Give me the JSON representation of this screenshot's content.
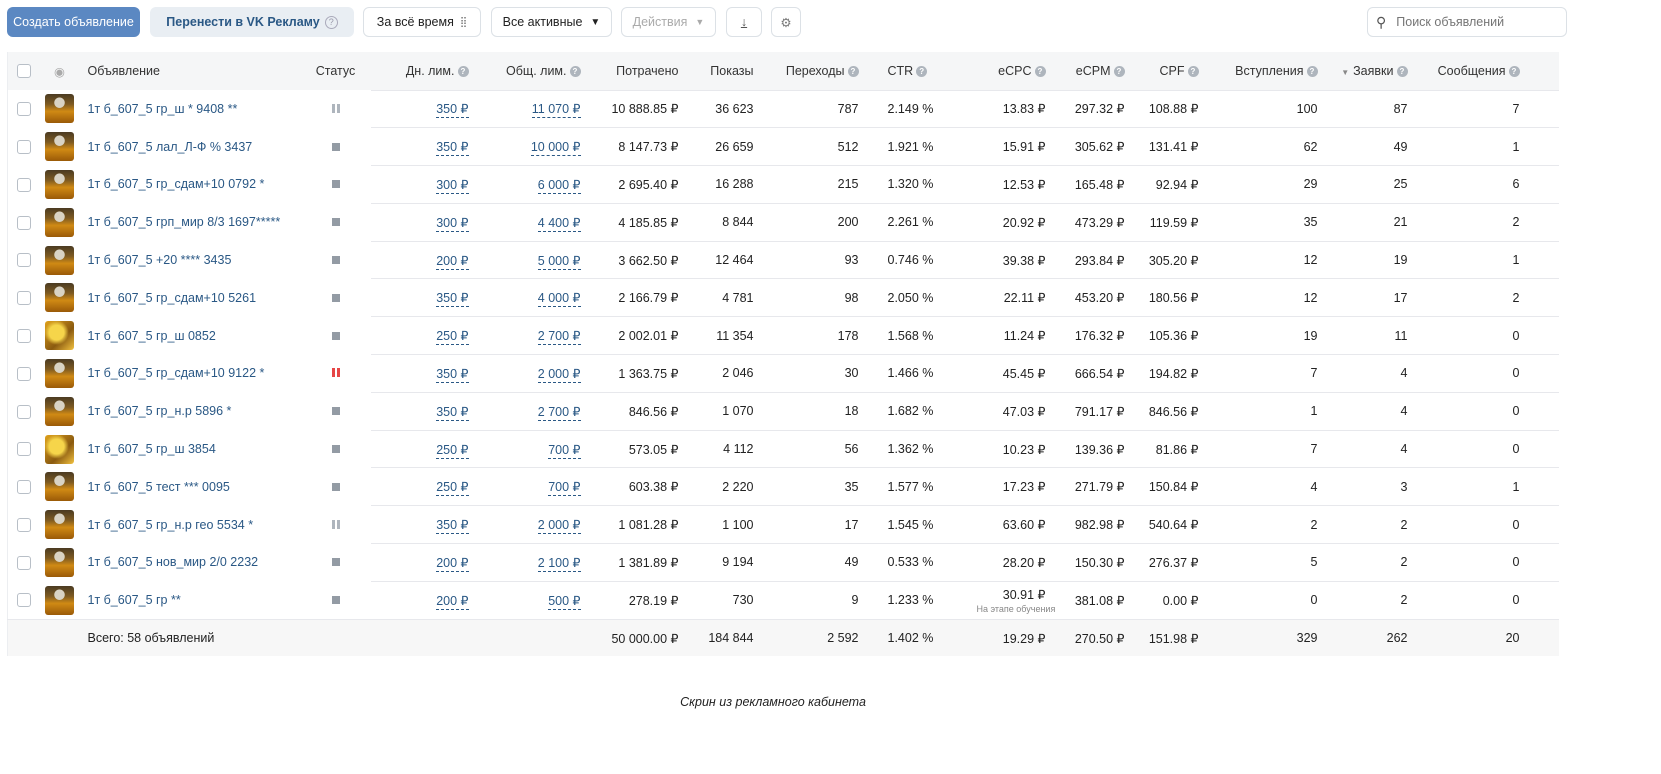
{
  "toolbar": {
    "create_label": "Создать объявление",
    "transfer_label": "Перенести в VK Рекламу",
    "period_label": "За всё время",
    "filter_label": "Все активные",
    "actions_label": "Действия",
    "search_placeholder": "Поиск объявлений"
  },
  "columns": {
    "ad": "Объявление",
    "status": "Статус",
    "daily_limit": "Дн. лим.",
    "total_limit": "Общ. лим.",
    "spent": "Потрачено",
    "impressions": "Показы",
    "clicks": "Переходы",
    "ctr": "CTR",
    "ecpc": "eCPC",
    "ecpm": "eCPM",
    "cpf": "CPF",
    "joins": "Вступления",
    "leads": "Заявки",
    "messages": "Сообщения"
  },
  "status_colors": {
    "paused": "#aeb5bd",
    "paused_alert": "#e64646",
    "stopped": "#939ba4"
  },
  "rows": [
    {
      "name": "1т б_607_5 гр_ш * 9408 **",
      "status": "paused",
      "thumb": "jar",
      "daily": "350 ₽",
      "total": "11 070 ₽",
      "spent": "10 888.85 ₽",
      "impr": "36 623",
      "clicks": "787",
      "ctr": "2.149 %",
      "ecpc": "13.83 ₽",
      "ecpm": "297.32 ₽",
      "cpf": "108.88 ₽",
      "joins": "100",
      "leads": "87",
      "msgs": "7"
    },
    {
      "name": "1т б_607_5 лал_Л-Ф % 3437",
      "status": "stopped",
      "thumb": "jar",
      "daily": "350 ₽",
      "total": "10 000 ₽",
      "spent": "8 147.73 ₽",
      "impr": "26 659",
      "clicks": "512",
      "ctr": "1.921 %",
      "ecpc": "15.91 ₽",
      "ecpm": "305.62 ₽",
      "cpf": "131.41 ₽",
      "joins": "62",
      "leads": "49",
      "msgs": "1"
    },
    {
      "name": "1т б_607_5 гр_сдам+10 0792 *",
      "status": "stopped",
      "thumb": "jar",
      "daily": "300 ₽",
      "total": "6 000 ₽",
      "spent": "2 695.40 ₽",
      "impr": "16 288",
      "clicks": "215",
      "ctr": "1.320 %",
      "ecpc": "12.53 ₽",
      "ecpm": "165.48 ₽",
      "cpf": "92.94 ₽",
      "joins": "29",
      "leads": "25",
      "msgs": "6"
    },
    {
      "name": "1т б_607_5 грп_мир 8/3 1697*****",
      "status": "stopped",
      "thumb": "jar",
      "daily": "300 ₽",
      "total": "4 400 ₽",
      "spent": "4 185.85 ₽",
      "impr": "8 844",
      "clicks": "200",
      "ctr": "2.261 %",
      "ecpc": "20.92 ₽",
      "ecpm": "473.29 ₽",
      "cpf": "119.59 ₽",
      "joins": "35",
      "leads": "21",
      "msgs": "2"
    },
    {
      "name": "1т б_607_5 +20 **** 3435",
      "status": "stopped",
      "thumb": "jar",
      "daily": "200 ₽",
      "total": "5 000 ₽",
      "spent": "3 662.50 ₽",
      "impr": "12 464",
      "clicks": "93",
      "ctr": "0.746 %",
      "ecpc": "39.38 ₽",
      "ecpm": "293.84 ₽",
      "cpf": "305.20 ₽",
      "joins": "12",
      "leads": "19",
      "msgs": "1"
    },
    {
      "name": "1т б_607_5 гр_сдам+10 5261",
      "status": "stopped",
      "thumb": "jar",
      "daily": "350 ₽",
      "total": "4 000 ₽",
      "spent": "2 166.79 ₽",
      "impr": "4 781",
      "clicks": "98",
      "ctr": "2.050 %",
      "ecpc": "22.11 ₽",
      "ecpm": "453.20 ₽",
      "cpf": "180.56 ₽",
      "joins": "12",
      "leads": "17",
      "msgs": "2"
    },
    {
      "name": "1т б_607_5 гр_ш 0852",
      "status": "stopped",
      "thumb": "honey",
      "daily": "250 ₽",
      "total": "2 700 ₽",
      "spent": "2 002.01 ₽",
      "impr": "11 354",
      "clicks": "178",
      "ctr": "1.568 %",
      "ecpc": "11.24 ₽",
      "ecpm": "176.32 ₽",
      "cpf": "105.36 ₽",
      "joins": "19",
      "leads": "11",
      "msgs": "0"
    },
    {
      "name": "1т б_607_5 гр_сдам+10 9122 *",
      "status": "paused_alert",
      "thumb": "jar",
      "daily": "350 ₽",
      "total": "2 000 ₽",
      "spent": "1 363.75 ₽",
      "impr": "2 046",
      "clicks": "30",
      "ctr": "1.466 %",
      "ecpc": "45.45 ₽",
      "ecpm": "666.54 ₽",
      "cpf": "194.82 ₽",
      "joins": "7",
      "leads": "4",
      "msgs": "0"
    },
    {
      "name": "1т б_607_5 гр_н.р 5896 *",
      "status": "stopped",
      "thumb": "jar",
      "daily": "350 ₽",
      "total": "2 700 ₽",
      "spent": "846.56 ₽",
      "impr": "1 070",
      "clicks": "18",
      "ctr": "1.682 %",
      "ecpc": "47.03 ₽",
      "ecpm": "791.17 ₽",
      "cpf": "846.56 ₽",
      "joins": "1",
      "leads": "4",
      "msgs": "0"
    },
    {
      "name": "1т б_607_5 гр_ш 3854",
      "status": "stopped",
      "thumb": "honey",
      "daily": "250 ₽",
      "total": "700 ₽",
      "spent": "573.05 ₽",
      "impr": "4 112",
      "clicks": "56",
      "ctr": "1.362 %",
      "ecpc": "10.23 ₽",
      "ecpm": "139.36 ₽",
      "cpf": "81.86 ₽",
      "joins": "7",
      "leads": "4",
      "msgs": "0"
    },
    {
      "name": "1т б_607_5 тест *** 0095",
      "status": "stopped",
      "thumb": "jar",
      "daily": "250 ₽",
      "total": "700 ₽",
      "spent": "603.38 ₽",
      "impr": "2 220",
      "clicks": "35",
      "ctr": "1.577 %",
      "ecpc": "17.23 ₽",
      "ecpm": "271.79 ₽",
      "cpf": "150.84 ₽",
      "joins": "4",
      "leads": "3",
      "msgs": "1"
    },
    {
      "name": "1т б_607_5 гр_н.р гео 5534 *",
      "status": "paused",
      "thumb": "jar",
      "daily": "350 ₽",
      "total": "2 000 ₽",
      "spent": "1 081.28 ₽",
      "impr": "1 100",
      "clicks": "17",
      "ctr": "1.545 %",
      "ecpc": "63.60 ₽",
      "ecpm": "982.98 ₽",
      "cpf": "540.64 ₽",
      "joins": "2",
      "leads": "2",
      "msgs": "0"
    },
    {
      "name": "1т б_607_5 нов_мир 2/0 2232",
      "status": "stopped",
      "thumb": "jar",
      "daily": "200 ₽",
      "total": "2 100 ₽",
      "spent": "1 381.89 ₽",
      "impr": "9 194",
      "clicks": "49",
      "ctr": "0.533 %",
      "ecpc": "28.20 ₽",
      "ecpm": "150.30 ₽",
      "cpf": "276.37 ₽",
      "joins": "5",
      "leads": "2",
      "msgs": "0"
    },
    {
      "name": "1т б_607_5 гр **",
      "status": "stopped",
      "thumb": "jar",
      "daily": "200 ₽",
      "total": "500 ₽",
      "spent": "278.19 ₽",
      "impr": "730",
      "clicks": "9",
      "ctr": "1.233 %",
      "ecpc": "30.91 ₽",
      "ecpc_note": "На этапе обучения",
      "ecpm": "381.08 ₽",
      "cpf": "0.00 ₽",
      "joins": "0",
      "leads": "2",
      "msgs": "0"
    }
  ],
  "totals": {
    "label": "Всего: 58 объявлений",
    "spent": "50 000.00 ₽",
    "impr": "184 844",
    "clicks": "2 592",
    "ctr": "1.402 %",
    "ecpc": "19.29 ₽",
    "ecpm": "270.50 ₽",
    "cpf": "151.98 ₽",
    "joins": "329",
    "leads": "262",
    "msgs": "20"
  },
  "caption": "Скрин из рекламного кабинета"
}
